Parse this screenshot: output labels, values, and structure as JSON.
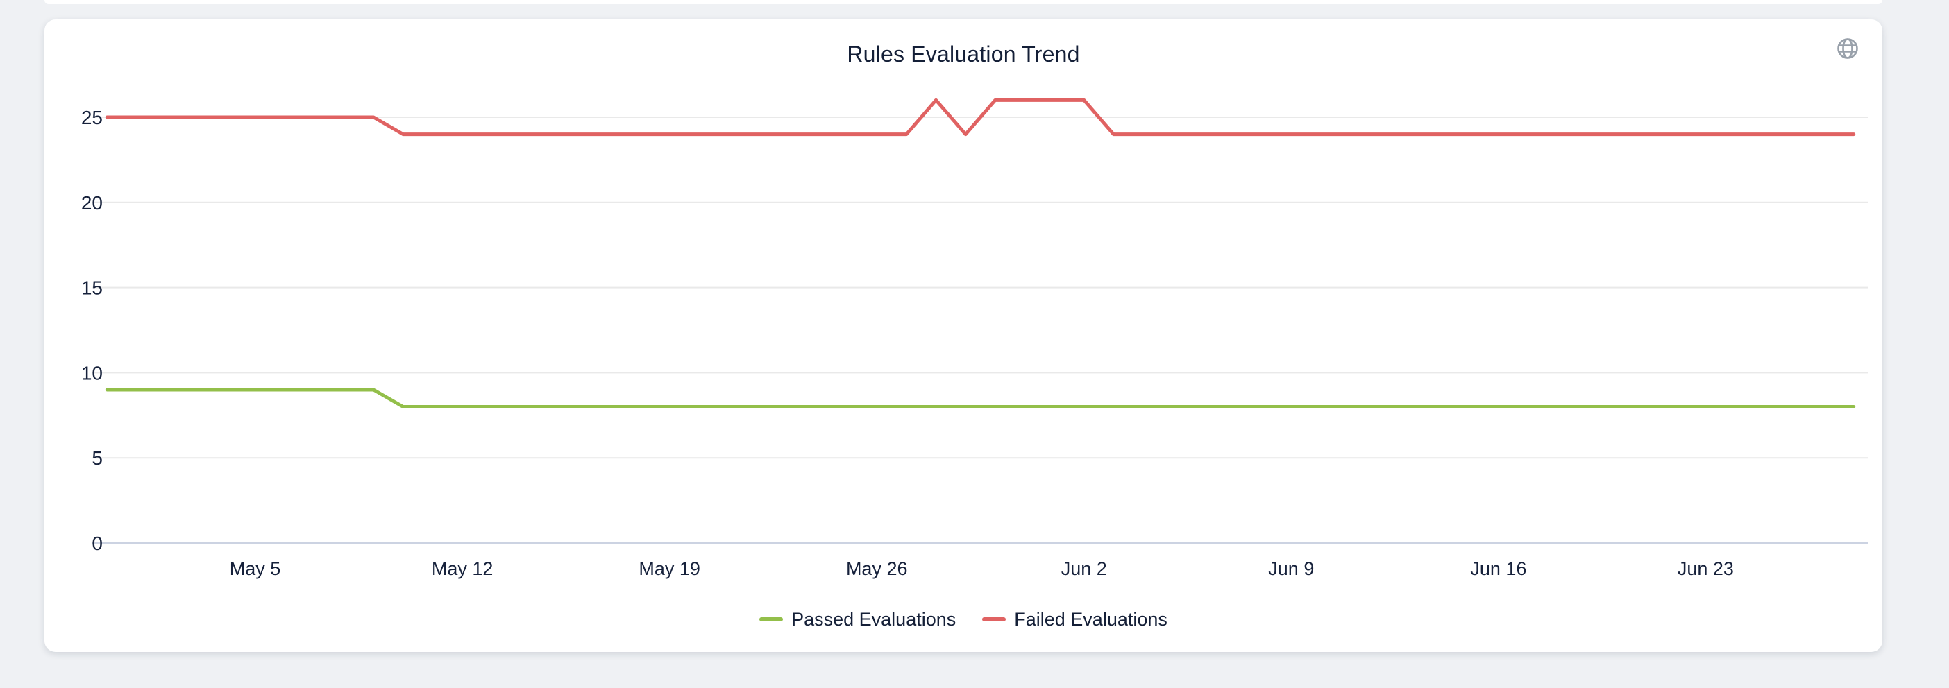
{
  "page": {
    "background_color": "#eff1f4"
  },
  "header": {
    "icon": "globe",
    "icon_color": "#98a0aa"
  },
  "colors": {
    "card_background": "#ffffff",
    "text": "#141f37",
    "gridline": "#e9e9e9",
    "axis_line": "#ccd3e2"
  },
  "chart_data": {
    "type": "line",
    "title": "Rules Evaluation Trend",
    "xlabel": "",
    "ylabel": "",
    "grid": true,
    "legend_position": "bottom",
    "ylim": [
      0,
      27.5
    ],
    "y_ticks": [
      0,
      5,
      10,
      15,
      20,
      25
    ],
    "x_tick_labels": [
      "May 5",
      "May 12",
      "May 19",
      "May 26",
      "Jun 2",
      "Jun 9",
      "Jun 16",
      "Jun 23"
    ],
    "x": [
      "Apr 30",
      "May 1",
      "May 2",
      "May 3",
      "May 4",
      "May 5",
      "May 6",
      "May 7",
      "May 8",
      "May 9",
      "May 10",
      "May 11",
      "May 12",
      "May 13",
      "May 14",
      "May 15",
      "May 16",
      "May 17",
      "May 18",
      "May 19",
      "May 20",
      "May 21",
      "May 22",
      "May 23",
      "May 24",
      "May 25",
      "May 26",
      "May 27",
      "May 28",
      "May 29",
      "May 30",
      "May 31",
      "Jun 1",
      "Jun 2",
      "Jun 3",
      "Jun 4",
      "Jun 5",
      "Jun 6",
      "Jun 7",
      "Jun 8",
      "Jun 9",
      "Jun 10",
      "Jun 11",
      "Jun 12",
      "Jun 13",
      "Jun 14",
      "Jun 15",
      "Jun 16",
      "Jun 17",
      "Jun 18",
      "Jun 19",
      "Jun 20",
      "Jun 21",
      "Jun 22",
      "Jun 23",
      "Jun 24",
      "Jun 25",
      "Jun 26",
      "Jun 27",
      "Jun 28"
    ],
    "series": [
      {
        "name": "Passed Evaluations",
        "color": "#93bf4a",
        "values": [
          9,
          9,
          9,
          9,
          9,
          9,
          9,
          9,
          9,
          9,
          8,
          8,
          8,
          8,
          8,
          8,
          8,
          8,
          8,
          8,
          8,
          8,
          8,
          8,
          8,
          8,
          8,
          8,
          8,
          8,
          8,
          8,
          8,
          8,
          8,
          8,
          8,
          8,
          8,
          8,
          8,
          8,
          8,
          8,
          8,
          8,
          8,
          8,
          8,
          8,
          8,
          8,
          8,
          8,
          8,
          8,
          8,
          8,
          8,
          8
        ]
      },
      {
        "name": "Failed Evaluations",
        "color": "#e06262",
        "values": [
          25,
          25,
          25,
          25,
          25,
          25,
          25,
          25,
          25,
          25,
          24,
          24,
          24,
          24,
          24,
          24,
          24,
          24,
          24,
          24,
          24,
          24,
          24,
          24,
          24,
          24,
          24,
          24,
          26,
          24,
          26,
          26,
          26,
          26,
          24,
          24,
          24,
          24,
          24,
          24,
          24,
          24,
          24,
          24,
          24,
          24,
          24,
          24,
          24,
          24,
          24,
          24,
          24,
          24,
          24,
          24,
          24,
          24,
          24,
          24
        ]
      }
    ]
  }
}
